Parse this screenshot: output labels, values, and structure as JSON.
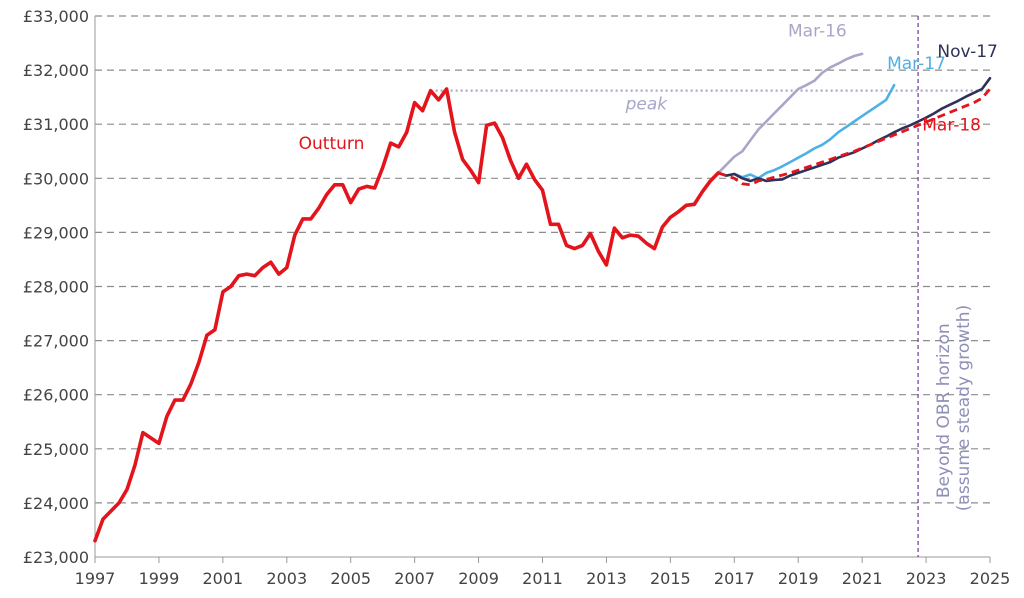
{
  "chart_data": {
    "type": "line",
    "title": "",
    "xlabel": "",
    "ylabel": "",
    "xlim": [
      1997,
      2025
    ],
    "ylim": [
      23000,
      33000
    ],
    "x_ticks": [
      "1997",
      "1999",
      "2001",
      "2003",
      "2005",
      "2007",
      "2009",
      "2011",
      "2013",
      "2015",
      "2017",
      "2019",
      "2021",
      "2023",
      "2025"
    ],
    "y_ticks": [
      "£23,000",
      "£24,000",
      "£25,000",
      "£26,000",
      "£27,000",
      "£28,000",
      "£29,000",
      "£30,000",
      "£31,000",
      "£32,000",
      "£33,000"
    ],
    "grid": "horizontal-dashed",
    "colors": {
      "outturn": "#e3141b",
      "mar16": "#a8a7c8",
      "mar17": "#4fb0e6",
      "nov17": "#2e3158",
      "mar18": "#e3141b",
      "peak": "#a8a7c8",
      "horizon": "#6a3a9a"
    },
    "annotations": {
      "peak_label": "peak",
      "horizon_label_line1": "Beyond OBR horizon",
      "horizon_label_line2": "(assume steady growth)",
      "horizon_x": 2022.75,
      "peak_value": 31620,
      "peak_start": 2007.5,
      "peak_end": 2025
    },
    "series": [
      {
        "name": "Outturn",
        "style": "solid",
        "x": [
          1997,
          1997.25,
          1997.5,
          1997.75,
          1998,
          1998.25,
          1998.5,
          1998.75,
          1999,
          1999.25,
          1999.5,
          1999.75,
          2000,
          2000.25,
          2000.5,
          2000.75,
          2001,
          2001.25,
          2001.5,
          2001.75,
          2002,
          2002.25,
          2002.5,
          2002.75,
          2003,
          2003.25,
          2003.5,
          2003.75,
          2004,
          2004.25,
          2004.5,
          2004.75,
          2005,
          2005.25,
          2005.5,
          2005.75,
          2006,
          2006.25,
          2006.5,
          2006.75,
          2007,
          2007.25,
          2007.5,
          2007.75,
          2008,
          2008.25,
          2008.5,
          2008.75,
          2009,
          2009.25,
          2009.5,
          2009.75,
          2010,
          2010.25,
          2010.5,
          2010.75,
          2011,
          2011.25,
          2011.5,
          2011.75,
          2012,
          2012.25,
          2012.5,
          2012.75,
          2013,
          2013.25,
          2013.5,
          2013.75,
          2014,
          2014.25,
          2014.5,
          2014.75,
          2015,
          2015.25,
          2015.5,
          2015.75,
          2016,
          2016.25,
          2016.5
        ],
        "y": [
          23300,
          23700,
          23850,
          24000,
          24250,
          24700,
          25300,
          25200,
          25100,
          25600,
          25900,
          25900,
          26200,
          26600,
          27100,
          27200,
          27900,
          28000,
          28200,
          28230,
          28200,
          28350,
          28450,
          28230,
          28350,
          28950,
          29250,
          29250,
          29450,
          29700,
          29880,
          29880,
          29550,
          29800,
          29850,
          29820,
          30200,
          30650,
          30580,
          30850,
          31400,
          31250,
          31620,
          31450,
          31650,
          30850,
          30350,
          30150,
          29920,
          30980,
          31020,
          30750,
          30330,
          30000,
          30260,
          29980,
          29780,
          29150,
          29150,
          28760,
          28700,
          28760,
          28980,
          28650,
          28400,
          29080,
          28900,
          28950,
          28930,
          28800,
          28700,
          29100,
          29280,
          29380,
          29500,
          29520,
          29750,
          29950,
          30100
        ]
      },
      {
        "name": "Mar-16",
        "style": "solid",
        "x": [
          2015.75,
          2016,
          2016.25,
          2016.5,
          2016.75,
          2017,
          2017.25,
          2017.5,
          2017.75,
          2018,
          2018.25,
          2018.5,
          2018.75,
          2019,
          2019.25,
          2019.5,
          2019.75,
          2020,
          2020.25,
          2020.5,
          2020.75,
          2021
        ],
        "y": [
          29500,
          29750,
          29950,
          30100,
          30250,
          30400,
          30500,
          30700,
          30900,
          31050,
          31200,
          31350,
          31500,
          31650,
          31720,
          31800,
          31950,
          32050,
          32120,
          32200,
          32260,
          32300
        ]
      },
      {
        "name": "Mar-17",
        "style": "solid",
        "x": [
          2016.5,
          2016.75,
          2017,
          2017.25,
          2017.5,
          2017.75,
          2018,
          2018.25,
          2018.5,
          2018.75,
          2019,
          2019.25,
          2019.5,
          2019.75,
          2020,
          2020.25,
          2020.5,
          2020.75,
          2021,
          2021.25,
          2021.5,
          2021.75,
          2022
        ],
        "y": [
          30100,
          30050,
          30080,
          30020,
          30070,
          30000,
          30100,
          30150,
          30220,
          30300,
          30380,
          30460,
          30550,
          30620,
          30720,
          30850,
          30950,
          31050,
          31150,
          31250,
          31350,
          31450,
          31720
        ]
      },
      {
        "name": "Nov-17",
        "style": "solid",
        "x": [
          2016.5,
          2016.75,
          2017,
          2017.25,
          2017.5,
          2017.75,
          2018,
          2018.25,
          2018.5,
          2018.75,
          2019,
          2019.25,
          2019.5,
          2019.75,
          2020,
          2020.25,
          2020.5,
          2020.75,
          2021,
          2021.25,
          2021.5,
          2021.75,
          2022,
          2022.25,
          2022.5,
          2022.75,
          2023,
          2023.25,
          2023.5,
          2023.75,
          2024,
          2024.25,
          2024.5,
          2024.75,
          2025
        ],
        "y": [
          30100,
          30050,
          30080,
          30000,
          29950,
          30000,
          29950,
          29970,
          29980,
          30050,
          30100,
          30150,
          30200,
          30250,
          30300,
          30380,
          30430,
          30480,
          30550,
          30620,
          30700,
          30770,
          30850,
          30920,
          30980,
          31050,
          31120,
          31200,
          31290,
          31360,
          31430,
          31510,
          31580,
          31650,
          31850
        ]
      },
      {
        "name": "Mar-18",
        "style": "dashed",
        "x": [
          2016.5,
          2016.75,
          2017,
          2017.25,
          2017.5,
          2017.75,
          2018,
          2018.25,
          2018.5,
          2018.75,
          2019,
          2019.25,
          2019.5,
          2019.75,
          2020,
          2020.25,
          2020.5,
          2020.75,
          2021,
          2021.25,
          2021.5,
          2021.75,
          2022,
          2022.25,
          2022.5,
          2022.75,
          2023,
          2023.25,
          2023.5,
          2023.75,
          2024,
          2024.25,
          2024.5,
          2024.75,
          2025
        ],
        "y": [
          30100,
          30050,
          30000,
          29900,
          29880,
          29950,
          29980,
          30020,
          30060,
          30100,
          30150,
          30200,
          30250,
          30300,
          30350,
          30400,
          30450,
          30500,
          30560,
          30620,
          30680,
          30740,
          30800,
          30860,
          30920,
          30980,
          31040,
          31100,
          31160,
          31220,
          31280,
          31340,
          31400,
          31480,
          31650
        ]
      }
    ],
    "series_labels": [
      {
        "text": "Outturn",
        "x": 2004.4,
        "y": 30540,
        "color": "#e3141b"
      },
      {
        "text": "Mar-16",
        "x": 2019.6,
        "y": 32620,
        "color": "#a8a7c8"
      },
      {
        "text": "Mar-17",
        "x": 2022.7,
        "y": 32020,
        "color": "#4fb0e6"
      },
      {
        "text": "Nov-17",
        "x": 2024.3,
        "y": 32240,
        "color": "#2e3158"
      },
      {
        "text": "Mar-18",
        "x": 2023.8,
        "y": 30880,
        "color": "#e3141b"
      }
    ]
  }
}
